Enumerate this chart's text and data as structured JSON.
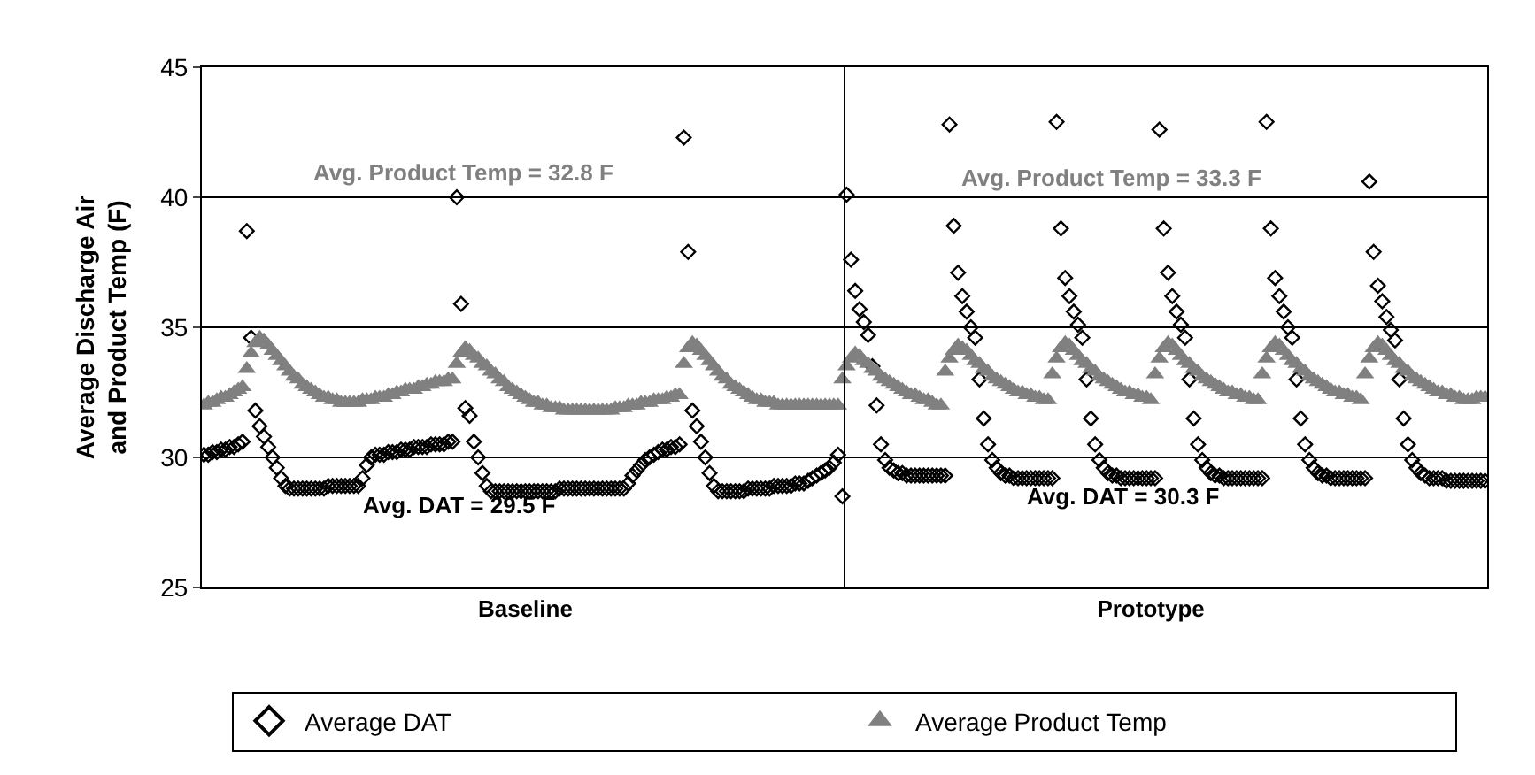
{
  "chart_data": {
    "type": "scatter",
    "ylabel": "Average Discharge Air\nand Product Temp (F)",
    "categories": [
      null,
      null,
      null,
      null,
      null,
      null,
      null,
      null,
      null,
      null,
      null,
      null,
      null,
      null,
      null,
      null,
      null,
      null,
      null,
      null,
      null,
      null,
      null,
      null,
      null,
      null,
      null,
      null,
      null,
      null,
      null,
      null,
      null,
      null,
      null,
      null,
      null,
      null,
      null,
      null,
      null,
      null,
      null,
      null,
      null,
      null,
      null,
      null,
      null,
      null,
      null,
      null,
      null,
      null,
      null,
      null,
      null,
      null,
      null,
      null,
      null,
      null,
      null,
      null,
      null,
      null,
      null,
      null,
      null,
      null,
      null,
      null,
      null,
      null,
      null,
      "Baseline",
      null,
      null,
      null,
      null,
      null,
      null,
      null,
      null,
      null,
      null,
      null,
      null,
      null,
      null,
      null,
      null,
      null,
      null,
      null,
      null,
      null,
      null,
      null,
      null,
      null,
      null,
      null,
      null,
      null,
      null,
      null,
      null,
      null,
      null,
      null,
      null,
      null,
      null,
      null,
      null,
      null,
      null,
      null,
      null,
      null,
      null,
      null,
      null,
      null,
      null,
      null,
      null,
      null,
      null,
      null,
      null,
      null,
      null,
      null,
      null,
      null,
      null,
      null,
      null,
      null,
      null,
      null,
      null,
      null,
      null,
      null,
      null,
      null,
      null,
      null,
      null,
      null,
      null,
      null,
      null,
      null,
      null,
      null,
      null,
      null,
      null,
      null,
      null,
      null,
      null,
      null,
      null,
      null,
      null,
      null,
      null,
      null,
      null,
      null,
      null,
      null,
      null,
      null,
      null,
      null,
      null,
      null,
      null,
      null,
      null,
      null,
      null,
      null,
      null,
      null,
      null,
      null,
      null,
      null,
      null,
      null,
      null,
      null,
      null,
      null,
      null,
      null,
      null,
      null,
      null,
      null,
      null,
      null,
      null,
      null,
      null,
      null,
      null,
      null,
      null,
      null,
      null,
      null,
      null,
      null,
      "Prototype",
      null,
      null,
      null,
      null,
      null,
      null,
      null,
      null,
      null,
      null,
      null,
      null,
      null,
      null,
      null,
      null,
      null,
      null,
      null,
      null,
      null,
      null,
      null,
      null,
      null,
      null,
      null,
      null,
      null,
      null,
      null,
      null,
      null,
      null,
      null,
      null,
      null,
      null,
      null,
      null,
      null,
      null,
      null,
      null,
      null,
      null,
      null,
      null,
      null,
      null,
      null,
      null,
      null,
      null,
      null,
      null,
      null,
      null,
      null,
      null,
      null,
      null,
      null,
      null,
      null,
      null,
      null,
      null,
      null,
      null,
      null,
      null,
      null,
      null,
      null,
      null,
      null,
      null
    ],
    "ylim": [
      25,
      45
    ],
    "yticks": [
      25,
      30,
      35,
      40,
      45
    ],
    "grid": "y",
    "legend": "bottom",
    "annotations": [
      "Avg. DAT = 29.5 F",
      "Avg. Product Temp = 32.8 F",
      "Avg. DAT = 30.3 F",
      "Avg. Product Temp = 33.3 F"
    ],
    "series": [
      {
        "name": "Average DAT",
        "color": "#000000",
        "marker": "diamond",
        "values": [
          30.1,
          30.1,
          30.2,
          30.2,
          30.3,
          30.3,
          30.4,
          30.4,
          30.5,
          30.6,
          38.7,
          34.6,
          31.8,
          31.2,
          30.8,
          30.4,
          30.0,
          29.6,
          29.2,
          28.9,
          28.8,
          28.8,
          28.8,
          28.8,
          28.8,
          28.8,
          28.8,
          28.8,
          28.8,
          28.9,
          28.9,
          28.9,
          28.9,
          28.9,
          28.9,
          28.9,
          28.9,
          29.2,
          29.7,
          30.0,
          30.1,
          30.1,
          30.1,
          30.2,
          30.2,
          30.2,
          30.3,
          30.3,
          30.3,
          30.4,
          30.4,
          30.4,
          30.4,
          30.5,
          30.5,
          30.5,
          30.5,
          30.6,
          30.6,
          40.0,
          35.9,
          31.9,
          31.6,
          30.6,
          30.0,
          29.4,
          28.9,
          28.7,
          28.7,
          28.7,
          28.7,
          28.7,
          28.7,
          28.7,
          28.7,
          28.7,
          28.7,
          28.7,
          28.7,
          28.7,
          28.7,
          28.7,
          28.7,
          28.8,
          28.8,
          28.8,
          28.8,
          28.8,
          28.8,
          28.8,
          28.8,
          28.8,
          28.8,
          28.8,
          28.8,
          28.8,
          28.8,
          28.8,
          28.8,
          29.0,
          29.3,
          29.5,
          29.7,
          29.9,
          30.0,
          30.1,
          30.2,
          30.3,
          30.3,
          30.4,
          30.4,
          30.5,
          42.3,
          37.9,
          31.8,
          31.2,
          30.6,
          30.0,
          29.4,
          28.9,
          28.7,
          28.7,
          28.7,
          28.7,
          28.7,
          28.7,
          28.7,
          28.8,
          28.8,
          28.8,
          28.8,
          28.8,
          28.8,
          28.9,
          28.9,
          28.9,
          28.9,
          28.9,
          29.0,
          29.0,
          29.0,
          29.1,
          29.2,
          29.3,
          29.4,
          29.5,
          29.6,
          29.8,
          30.1,
          28.5,
          40.1,
          37.6,
          36.4,
          35.7,
          35.2,
          34.7,
          33.5,
          32.0,
          30.5,
          29.9,
          29.6,
          29.5,
          29.4,
          29.4,
          29.3,
          29.3,
          29.3,
          29.3,
          29.3,
          29.3,
          29.3,
          29.3,
          29.3,
          29.3,
          42.8,
          38.9,
          37.1,
          36.2,
          35.6,
          35.0,
          34.6,
          33.0,
          31.5,
          30.5,
          29.9,
          29.6,
          29.4,
          29.3,
          29.3,
          29.2,
          29.2,
          29.2,
          29.2,
          29.2,
          29.2,
          29.2,
          29.2,
          29.2,
          29.2,
          42.9,
          38.8,
          36.9,
          36.2,
          35.6,
          35.1,
          34.6,
          33.0,
          31.5,
          30.5,
          29.9,
          29.6,
          29.4,
          29.3,
          29.3,
          29.2,
          29.2,
          29.2,
          29.2,
          29.2,
          29.2,
          29.2,
          29.2,
          29.2,
          42.6,
          38.8,
          37.1,
          36.2,
          35.6,
          35.1,
          34.6,
          33.0,
          31.5,
          30.5,
          29.9,
          29.6,
          29.4,
          29.3,
          29.3,
          29.2,
          29.2,
          29.2,
          29.2,
          29.2,
          29.2,
          29.2,
          29.2,
          29.2,
          29.2,
          42.9,
          38.8,
          36.9,
          36.2,
          35.6,
          35.0,
          34.6,
          33.0,
          31.5,
          30.5,
          29.9,
          29.6,
          29.4,
          29.3,
          29.3,
          29.2,
          29.2,
          29.2,
          29.2,
          29.2,
          29.2,
          29.2,
          29.2,
          29.2,
          40.6,
          37.9,
          36.6,
          36.0,
          35.4,
          34.9,
          34.5,
          33.0,
          31.5,
          30.5,
          29.9,
          29.6,
          29.4,
          29.3,
          29.2,
          29.2,
          29.2,
          29.2,
          29.1,
          29.1,
          29.1,
          29.1,
          29.1,
          29.1,
          29.1,
          29.1,
          29.1,
          29.1
        ]
      },
      {
        "name": "Average Product Temp",
        "color": "#808080",
        "marker": "triangle",
        "values": [
          32.0,
          32.1,
          32.1,
          32.2,
          32.3,
          32.3,
          32.4,
          32.5,
          32.6,
          32.7,
          33.4,
          34.0,
          34.4,
          34.6,
          34.5,
          34.3,
          34.1,
          33.9,
          33.7,
          33.5,
          33.3,
          33.1,
          33.0,
          32.8,
          32.7,
          32.6,
          32.5,
          32.4,
          32.3,
          32.3,
          32.2,
          32.2,
          32.1,
          32.1,
          32.1,
          32.1,
          32.1,
          32.2,
          32.2,
          32.2,
          32.3,
          32.3,
          32.3,
          32.4,
          32.4,
          32.5,
          32.5,
          32.6,
          32.6,
          32.6,
          32.7,
          32.7,
          32.8,
          32.8,
          32.9,
          32.9,
          32.9,
          33.0,
          33.0,
          33.6,
          34.0,
          34.2,
          34.1,
          33.9,
          33.8,
          33.6,
          33.5,
          33.3,
          33.2,
          33.0,
          32.9,
          32.7,
          32.6,
          32.5,
          32.4,
          32.3,
          32.2,
          32.1,
          32.1,
          32.0,
          32.0,
          31.9,
          31.9,
          31.9,
          31.8,
          31.8,
          31.8,
          31.8,
          31.8,
          31.8,
          31.8,
          31.8,
          31.8,
          31.8,
          31.8,
          31.8,
          31.9,
          31.9,
          31.9,
          32.0,
          32.0,
          32.0,
          32.1,
          32.1,
          32.1,
          32.2,
          32.2,
          32.2,
          32.3,
          32.3,
          32.4,
          32.4,
          33.6,
          34.2,
          34.4,
          34.3,
          34.1,
          33.9,
          33.7,
          33.5,
          33.3,
          33.1,
          33.0,
          32.8,
          32.7,
          32.6,
          32.5,
          32.4,
          32.3,
          32.2,
          32.2,
          32.1,
          32.1,
          32.1,
          32.0,
          32.0,
          32.0,
          32.0,
          32.0,
          32.0,
          32.0,
          32.0,
          32.0,
          32.0,
          32.0,
          32.0,
          32.0,
          32.0,
          32.0,
          33.0,
          33.5,
          33.8,
          34.0,
          33.9,
          33.7,
          33.6,
          33.4,
          33.3,
          33.1,
          33.0,
          32.9,
          32.8,
          32.7,
          32.6,
          32.5,
          32.4,
          32.4,
          32.3,
          32.2,
          32.2,
          32.1,
          32.0,
          32.0,
          33.3,
          33.8,
          34.1,
          34.3,
          34.2,
          34.1,
          33.9,
          33.7,
          33.6,
          33.4,
          33.3,
          33.1,
          33.0,
          32.9,
          32.8,
          32.7,
          32.6,
          32.5,
          32.5,
          32.4,
          32.4,
          32.3,
          32.3,
          32.2,
          32.2,
          33.2,
          33.8,
          34.2,
          34.4,
          34.3,
          34.1,
          33.9,
          33.7,
          33.6,
          33.4,
          33.3,
          33.1,
          33.0,
          32.9,
          32.8,
          32.7,
          32.6,
          32.5,
          32.5,
          32.4,
          32.4,
          32.3,
          32.3,
          32.2,
          33.2,
          33.8,
          34.2,
          34.4,
          34.3,
          34.1,
          33.9,
          33.7,
          33.6,
          33.4,
          33.3,
          33.1,
          33.0,
          32.9,
          32.8,
          32.7,
          32.6,
          32.5,
          32.5,
          32.4,
          32.4,
          32.3,
          32.3,
          32.2,
          32.2,
          33.2,
          33.8,
          34.2,
          34.4,
          34.3,
          34.1,
          33.9,
          33.7,
          33.6,
          33.4,
          33.3,
          33.1,
          33.0,
          32.9,
          32.8,
          32.7,
          32.6,
          32.5,
          32.5,
          32.4,
          32.4,
          32.3,
          32.3,
          32.2,
          33.2,
          33.8,
          34.2,
          34.4,
          34.3,
          34.1,
          33.9,
          33.7,
          33.6,
          33.4,
          33.3,
          33.1,
          33.0,
          32.9,
          32.8,
          32.7,
          32.6,
          32.5,
          32.5,
          32.4,
          32.4,
          32.3,
          32.3,
          32.2,
          32.2,
          32.2,
          32.3,
          32.3,
          32.3
        ]
      }
    ]
  }
}
